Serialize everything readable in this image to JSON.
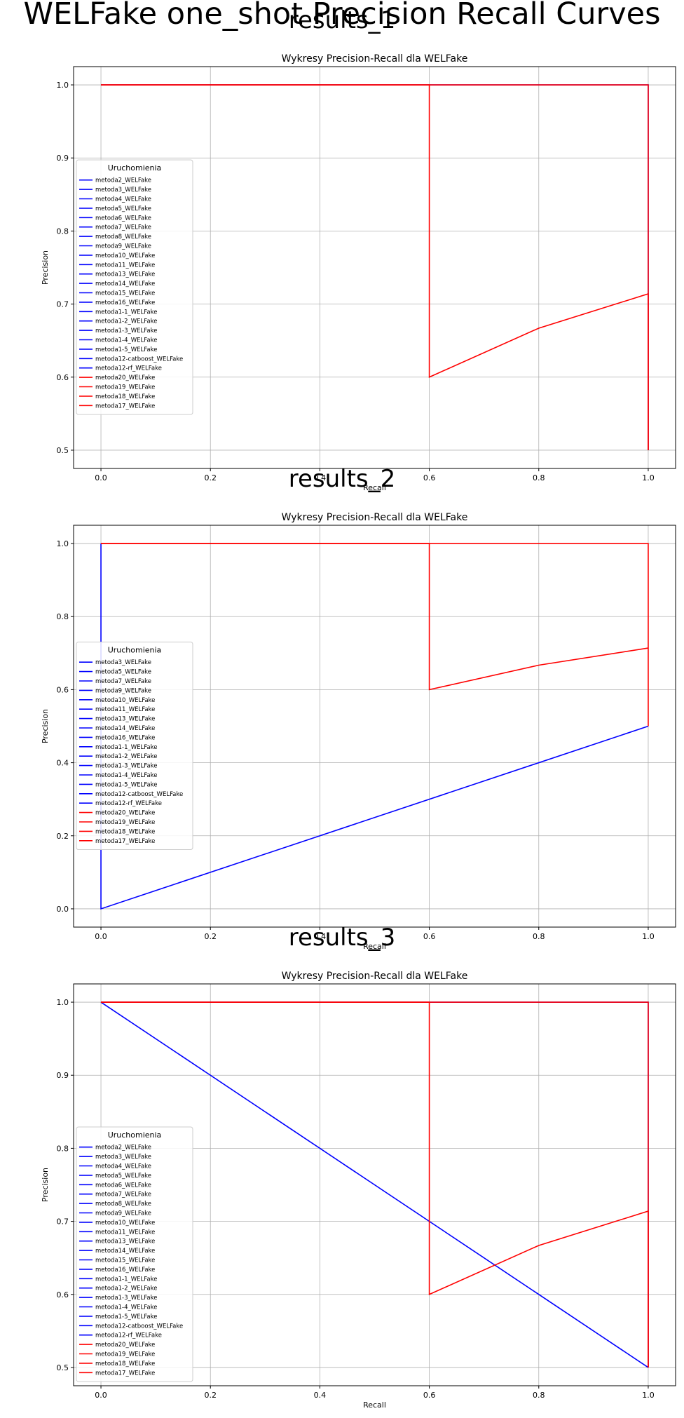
{
  "figure": {
    "suptitle": "WELFake one_shot Precision Recall Curves"
  },
  "colors": {
    "blue": "#0000ff",
    "red": "#ff0000",
    "grid": "#b0b0b0",
    "axes": "#000000"
  },
  "chart_data": [
    {
      "type": "line",
      "subplot_title": "results_1",
      "title": "Wykresy Precision-Recall dla WELFake",
      "xlabel": "Recall",
      "ylabel": "Precision",
      "xlim": [
        -0.05,
        1.05
      ],
      "ylim": [
        0.475,
        1.025
      ],
      "xticks": [
        "0.0",
        "0.2",
        "0.4",
        "0.6",
        "0.8",
        "1.0"
      ],
      "xtick_values": [
        0.0,
        0.2,
        0.4,
        0.6,
        0.8,
        1.0
      ],
      "yticks": [
        "0.5",
        "0.6",
        "0.7",
        "0.8",
        "0.9",
        "1.0"
      ],
      "ytick_values": [
        0.5,
        0.6,
        0.7,
        0.8,
        0.9,
        1.0
      ],
      "grid": true,
      "legend": {
        "title": "Uruchomienia",
        "placement": "center-left",
        "entries": [
          {
            "name": "metoda2_WELFake",
            "color": "#0000ff"
          },
          {
            "name": "metoda3_WELFake",
            "color": "#0000ff"
          },
          {
            "name": "metoda4_WELFake",
            "color": "#0000ff"
          },
          {
            "name": "metoda5_WELFake",
            "color": "#0000ff"
          },
          {
            "name": "metoda6_WELFake",
            "color": "#0000ff"
          },
          {
            "name": "metoda7_WELFake",
            "color": "#0000ff"
          },
          {
            "name": "metoda8_WELFake",
            "color": "#0000ff"
          },
          {
            "name": "metoda9_WELFake",
            "color": "#0000ff"
          },
          {
            "name": "metoda10_WELFake",
            "color": "#0000ff"
          },
          {
            "name": "metoda11_WELFake",
            "color": "#0000ff"
          },
          {
            "name": "metoda13_WELFake",
            "color": "#0000ff"
          },
          {
            "name": "metoda14_WELFake",
            "color": "#0000ff"
          },
          {
            "name": "metoda15_WELFake",
            "color": "#0000ff"
          },
          {
            "name": "metoda16_WELFake",
            "color": "#0000ff"
          },
          {
            "name": "metoda1-1_WELFake",
            "color": "#0000ff"
          },
          {
            "name": "metoda1-2_WELFake",
            "color": "#0000ff"
          },
          {
            "name": "metoda1-3_WELFake",
            "color": "#0000ff"
          },
          {
            "name": "metoda1-4_WELFake",
            "color": "#0000ff"
          },
          {
            "name": "metoda1-5_WELFake",
            "color": "#0000ff"
          },
          {
            "name": "metoda12-catboost_WELFake",
            "color": "#0000ff"
          },
          {
            "name": "metoda12-rf_WELFake",
            "color": "#0000ff"
          },
          {
            "name": "metoda20_WELFake",
            "color": "#ff0000"
          },
          {
            "name": "metoda19_WELFake",
            "color": "#ff0000"
          },
          {
            "name": "metoda18_WELFake",
            "color": "#ff0000"
          },
          {
            "name": "metoda17_WELFake",
            "color": "#ff0000"
          }
        ]
      },
      "series": [
        {
          "color": "#0000ff",
          "x": [
            0.0,
            1.0,
            1.0
          ],
          "y": [
            1.0,
            1.0,
            0.5
          ]
        },
        {
          "color": "#ff0000",
          "x": [
            0.0,
            1.0,
            1.0
          ],
          "y": [
            1.0,
            1.0,
            0.5
          ]
        },
        {
          "color": "#ff0000",
          "x": [
            0.0,
            0.6,
            0.6,
            0.8,
            1.0,
            1.0
          ],
          "y": [
            1.0,
            1.0,
            0.6,
            0.667,
            0.714,
            0.5
          ]
        }
      ]
    },
    {
      "type": "line",
      "subplot_title": "results_2",
      "title": "Wykresy Precision-Recall dla WELFake",
      "xlabel": "Recall",
      "ylabel": "Precision",
      "xlim": [
        -0.05,
        1.05
      ],
      "ylim": [
        -0.05,
        1.05
      ],
      "xticks": [
        "0.0",
        "0.2",
        "0.4",
        "0.6",
        "0.8",
        "1.0"
      ],
      "xtick_values": [
        0.0,
        0.2,
        0.4,
        0.6,
        0.8,
        1.0
      ],
      "yticks": [
        "0.0",
        "0.2",
        "0.4",
        "0.6",
        "0.8",
        "1.0"
      ],
      "ytick_values": [
        0.0,
        0.2,
        0.4,
        0.6,
        0.8,
        1.0
      ],
      "grid": true,
      "legend": {
        "title": "Uruchomienia",
        "placement": "center-left",
        "entries": [
          {
            "name": "metoda3_WELFake",
            "color": "#0000ff"
          },
          {
            "name": "metoda5_WELFake",
            "color": "#0000ff"
          },
          {
            "name": "metoda7_WELFake",
            "color": "#0000ff"
          },
          {
            "name": "metoda9_WELFake",
            "color": "#0000ff"
          },
          {
            "name": "metoda10_WELFake",
            "color": "#0000ff"
          },
          {
            "name": "metoda11_WELFake",
            "color": "#0000ff"
          },
          {
            "name": "metoda13_WELFake",
            "color": "#0000ff"
          },
          {
            "name": "metoda14_WELFake",
            "color": "#0000ff"
          },
          {
            "name": "metoda16_WELFake",
            "color": "#0000ff"
          },
          {
            "name": "metoda1-1_WELFake",
            "color": "#0000ff"
          },
          {
            "name": "metoda1-2_WELFake",
            "color": "#0000ff"
          },
          {
            "name": "metoda1-3_WELFake",
            "color": "#0000ff"
          },
          {
            "name": "metoda1-4_WELFake",
            "color": "#0000ff"
          },
          {
            "name": "metoda1-5_WELFake",
            "color": "#0000ff"
          },
          {
            "name": "metoda12-catboost_WELFake",
            "color": "#0000ff"
          },
          {
            "name": "metoda12-rf_WELFake",
            "color": "#0000ff"
          },
          {
            "name": "metoda20_WELFake",
            "color": "#ff0000"
          },
          {
            "name": "metoda19_WELFake",
            "color": "#ff0000"
          },
          {
            "name": "metoda18_WELFake",
            "color": "#ff0000"
          },
          {
            "name": "metoda17_WELFake",
            "color": "#ff0000"
          }
        ]
      },
      "series": [
        {
          "color": "#0000ff",
          "x": [
            0.0,
            0.0,
            1.0
          ],
          "y": [
            1.0,
            0.0,
            0.5
          ]
        },
        {
          "color": "#ff0000",
          "x": [
            0.0,
            1.0,
            1.0
          ],
          "y": [
            1.0,
            1.0,
            0.5
          ]
        },
        {
          "color": "#ff0000",
          "x": [
            0.0,
            0.6,
            0.6,
            0.8,
            1.0
          ],
          "y": [
            1.0,
            1.0,
            0.6,
            0.667,
            0.714
          ]
        }
      ]
    },
    {
      "type": "line",
      "subplot_title": "results_3",
      "title": "Wykresy Precision-Recall dla WELFake",
      "xlabel": "Recall",
      "ylabel": "Precision",
      "xlim": [
        -0.05,
        1.05
      ],
      "ylim": [
        0.475,
        1.025
      ],
      "xticks": [
        "0.0",
        "0.2",
        "0.4",
        "0.6",
        "0.8",
        "1.0"
      ],
      "xtick_values": [
        0.0,
        0.2,
        0.4,
        0.6,
        0.8,
        1.0
      ],
      "yticks": [
        "0.5",
        "0.6",
        "0.7",
        "0.8",
        "0.9",
        "1.0"
      ],
      "ytick_values": [
        0.5,
        0.6,
        0.7,
        0.8,
        0.9,
        1.0
      ],
      "grid": true,
      "legend": {
        "title": "Uruchomienia",
        "placement": "lower-left",
        "entries": [
          {
            "name": "metoda2_WELFake",
            "color": "#0000ff"
          },
          {
            "name": "metoda3_WELFake",
            "color": "#0000ff"
          },
          {
            "name": "metoda4_WELFake",
            "color": "#0000ff"
          },
          {
            "name": "metoda5_WELFake",
            "color": "#0000ff"
          },
          {
            "name": "metoda6_WELFake",
            "color": "#0000ff"
          },
          {
            "name": "metoda7_WELFake",
            "color": "#0000ff"
          },
          {
            "name": "metoda8_WELFake",
            "color": "#0000ff"
          },
          {
            "name": "metoda9_WELFake",
            "color": "#0000ff"
          },
          {
            "name": "metoda10_WELFake",
            "color": "#0000ff"
          },
          {
            "name": "metoda11_WELFake",
            "color": "#0000ff"
          },
          {
            "name": "metoda13_WELFake",
            "color": "#0000ff"
          },
          {
            "name": "metoda14_WELFake",
            "color": "#0000ff"
          },
          {
            "name": "metoda15_WELFake",
            "color": "#0000ff"
          },
          {
            "name": "metoda16_WELFake",
            "color": "#0000ff"
          },
          {
            "name": "metoda1-1_WELFake",
            "color": "#0000ff"
          },
          {
            "name": "metoda1-2_WELFake",
            "color": "#0000ff"
          },
          {
            "name": "metoda1-3_WELFake",
            "color": "#0000ff"
          },
          {
            "name": "metoda1-4_WELFake",
            "color": "#0000ff"
          },
          {
            "name": "metoda1-5_WELFake",
            "color": "#0000ff"
          },
          {
            "name": "metoda12-catboost_WELFake",
            "color": "#0000ff"
          },
          {
            "name": "metoda12-rf_WELFake",
            "color": "#0000ff"
          },
          {
            "name": "metoda20_WELFake",
            "color": "#ff0000"
          },
          {
            "name": "metoda19_WELFake",
            "color": "#ff0000"
          },
          {
            "name": "metoda18_WELFake",
            "color": "#ff0000"
          },
          {
            "name": "metoda17_WELFake",
            "color": "#ff0000"
          }
        ]
      },
      "series": [
        {
          "color": "#0000ff",
          "x": [
            0.0,
            1.0,
            1.0
          ],
          "y": [
            1.0,
            1.0,
            0.5
          ]
        },
        {
          "color": "#0000ff",
          "x": [
            0.0,
            1.0
          ],
          "y": [
            1.0,
            0.5
          ]
        },
        {
          "color": "#ff0000",
          "x": [
            0.0,
            1.0,
            1.0
          ],
          "y": [
            1.0,
            1.0,
            0.5
          ]
        },
        {
          "color": "#ff0000",
          "x": [
            0.0,
            0.6,
            0.6,
            0.8,
            1.0,
            1.0
          ],
          "y": [
            1.0,
            1.0,
            0.6,
            0.667,
            0.714,
            0.5
          ]
        }
      ]
    }
  ]
}
